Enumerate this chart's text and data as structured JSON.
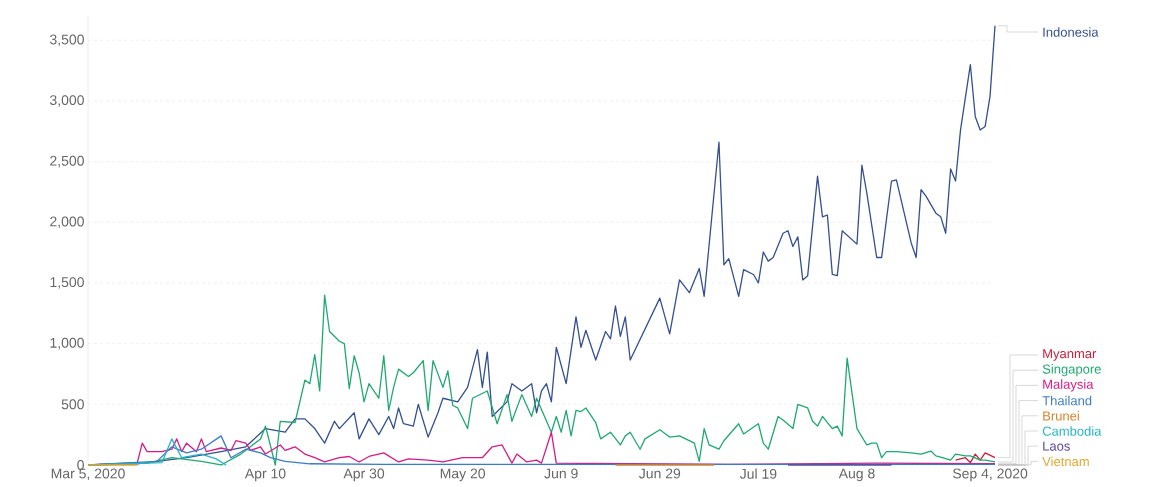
{
  "chart_data": {
    "type": "line",
    "xlim": [
      "2020-03-05",
      "2020-09-05"
    ],
    "xticks": [
      {
        "value": "2020-03-05",
        "label": "Mar 5, 2020"
      },
      {
        "value": "2020-04-10",
        "label": "Apr 10"
      },
      {
        "value": "2020-04-30",
        "label": "Apr 30"
      },
      {
        "value": "2020-05-20",
        "label": "May 20"
      },
      {
        "value": "2020-06-09",
        "label": "Jun 9"
      },
      {
        "value": "2020-06-29",
        "label": "Jun 29"
      },
      {
        "value": "2020-07-19",
        "label": "Jul 19"
      },
      {
        "value": "2020-08-08",
        "label": "Aug 8"
      },
      {
        "value": "2020-09-04",
        "label": "Sep 4, 2020"
      }
    ],
    "ylim": [
      0,
      3700
    ],
    "yticks": [
      0,
      {
        "value": 500,
        "label": "500"
      },
      {
        "value": 1000,
        "label": "1,000"
      },
      {
        "value": 1500,
        "label": "1,500"
      },
      {
        "value": 2000,
        "label": "2,000"
      },
      {
        "value": 2500,
        "label": "2,500"
      },
      {
        "value": 3000,
        "label": "3,000"
      },
      {
        "value": 3500,
        "label": "3,500"
      }
    ],
    "grid": "y",
    "series": [
      {
        "name": "Indonesia",
        "color": "#34508f",
        "x": [
          "2020-03-05",
          "2020-03-15",
          "2020-03-25",
          "2020-04-01",
          "2020-04-06",
          "2020-04-10",
          "2020-04-14",
          "2020-04-16",
          "2020-04-18",
          "2020-04-20",
          "2020-04-22",
          "2020-04-24",
          "2020-04-25",
          "2020-04-28",
          "2020-04-29",
          "2020-05-01",
          "2020-05-03",
          "2020-05-05",
          "2020-05-06",
          "2020-05-07",
          "2020-05-08",
          "2020-05-10",
          "2020-05-11",
          "2020-05-13",
          "2020-05-15",
          "2020-05-16",
          "2020-05-19",
          "2020-05-21",
          "2020-05-23",
          "2020-05-24",
          "2020-05-25",
          "2020-05-26",
          "2020-05-29",
          "2020-05-30",
          "2020-06-01",
          "2020-06-03",
          "2020-06-04",
          "2020-06-05",
          "2020-06-06",
          "2020-06-07",
          "2020-06-08",
          "2020-06-10",
          "2020-06-12",
          "2020-06-13",
          "2020-06-14",
          "2020-06-16",
          "2020-06-18",
          "2020-06-19",
          "2020-06-20",
          "2020-06-21",
          "2020-06-22",
          "2020-06-23",
          "2020-06-29",
          "2020-07-01",
          "2020-07-03",
          "2020-07-05",
          "2020-07-07",
          "2020-07-08",
          "2020-07-11",
          "2020-07-12",
          "2020-07-13",
          "2020-07-15",
          "2020-07-16",
          "2020-07-18",
          "2020-07-19",
          "2020-07-20",
          "2020-07-21",
          "2020-07-22",
          "2020-07-24",
          "2020-07-25",
          "2020-07-26",
          "2020-07-27",
          "2020-07-28",
          "2020-07-29",
          "2020-07-31",
          "2020-08-01",
          "2020-08-02",
          "2020-08-03",
          "2020-08-04",
          "2020-08-05",
          "2020-08-08",
          "2020-08-09",
          "2020-08-10",
          "2020-08-12",
          "2020-08-13",
          "2020-08-14",
          "2020-08-15",
          "2020-08-16",
          "2020-08-19",
          "2020-08-20",
          "2020-08-21",
          "2020-08-22",
          "2020-08-24",
          "2020-08-25",
          "2020-08-26",
          "2020-08-27",
          "2020-08-28",
          "2020-08-29",
          "2020-08-31",
          "2020-09-01",
          "2020-09-02",
          "2020-09-03",
          "2020-09-04",
          "2020-09-05"
        ],
        "values": [
          0,
          10,
          60,
          110,
          150,
          300,
          270,
          380,
          380,
          300,
          180,
          360,
          300,
          430,
          215,
          380,
          250,
          400,
          300,
          470,
          340,
          320,
          500,
          230,
          430,
          550,
          520,
          640,
          950,
          640,
          930,
          400,
          520,
          670,
          610,
          670,
          430,
          610,
          670,
          520,
          970,
          670,
          1220,
          970,
          1110,
          865,
          1100,
          1040,
          1310,
          1060,
          1220,
          865,
          1375,
          1080,
          1525,
          1420,
          1620,
          1390,
          2660,
          1650,
          1700,
          1390,
          1610,
          1570,
          1500,
          1755,
          1680,
          1710,
          1910,
          1930,
          1800,
          1880,
          1525,
          1560,
          2380,
          2045,
          2060,
          1570,
          1560,
          1930,
          1820,
          2470,
          2240,
          1710,
          1710,
          2030,
          2340,
          2350,
          1830,
          1710,
          2270,
          2215,
          2075,
          2045,
          1910,
          2440,
          2340,
          2760,
          3300,
          2870,
          2760,
          2790,
          3040,
          3620
        ]
      },
      {
        "name": "Myanmar",
        "color": "#c8203c",
        "x": [
          "2020-08-28",
          "2020-08-30",
          "2020-08-31",
          "2020-09-01",
          "2020-09-02",
          "2020-09-03",
          "2020-09-05"
        ],
        "values": [
          40,
          60,
          20,
          90,
          40,
          100,
          60
        ]
      },
      {
        "name": "Singapore",
        "color": "#1fa971",
        "x": [
          "2020-03-05",
          "2020-03-17",
          "2020-03-22",
          "2020-03-28",
          "2020-04-01",
          "2020-04-05",
          "2020-04-09",
          "2020-04-10",
          "2020-04-12",
          "2020-04-13",
          "2020-04-16",
          "2020-04-18",
          "2020-04-19",
          "2020-04-20",
          "2020-04-21",
          "2020-04-22",
          "2020-04-23",
          "2020-04-25",
          "2020-04-26",
          "2020-04-27",
          "2020-04-28",
          "2020-04-29",
          "2020-04-30",
          "2020-05-01",
          "2020-05-03",
          "2020-05-04",
          "2020-05-05",
          "2020-05-06",
          "2020-05-07",
          "2020-05-09",
          "2020-05-10",
          "2020-05-12",
          "2020-05-13",
          "2020-05-14",
          "2020-05-16",
          "2020-05-17",
          "2020-05-18",
          "2020-05-19",
          "2020-05-21",
          "2020-05-22",
          "2020-05-25",
          "2020-05-27",
          "2020-05-29",
          "2020-05-30",
          "2020-06-01",
          "2020-06-03",
          "2020-06-04",
          "2020-06-07",
          "2020-06-08",
          "2020-06-09",
          "2020-06-10",
          "2020-06-11",
          "2020-06-12",
          "2020-06-13",
          "2020-06-14",
          "2020-06-16",
          "2020-06-17",
          "2020-06-19",
          "2020-06-21",
          "2020-06-22",
          "2020-06-23",
          "2020-06-25",
          "2020-06-26",
          "2020-06-29",
          "2020-07-01",
          "2020-07-03",
          "2020-07-06",
          "2020-07-07",
          "2020-07-08",
          "2020-07-09",
          "2020-07-11",
          "2020-07-12",
          "2020-07-15",
          "2020-07-16",
          "2020-07-19",
          "2020-07-20",
          "2020-07-21",
          "2020-07-23",
          "2020-07-24",
          "2020-07-26",
          "2020-07-27",
          "2020-07-29",
          "2020-07-30",
          "2020-07-31",
          "2020-08-01",
          "2020-08-03",
          "2020-08-04",
          "2020-08-05",
          "2020-08-06",
          "2020-08-08",
          "2020-08-10",
          "2020-08-11",
          "2020-08-12",
          "2020-08-13",
          "2020-08-14",
          "2020-08-16",
          "2020-08-19",
          "2020-08-21",
          "2020-08-23",
          "2020-08-24",
          "2020-08-25",
          "2020-08-27",
          "2020-08-28",
          "2020-08-30",
          "2020-08-31",
          "2020-09-02",
          "2020-09-03",
          "2020-09-05"
        ],
        "values": [
          0,
          15,
          60,
          30,
          0,
          90,
          215,
          320,
          0,
          360,
          350,
          700,
          670,
          910,
          610,
          1400,
          1100,
          1020,
          1000,
          630,
          900,
          760,
          520,
          670,
          550,
          900,
          450,
          640,
          790,
          730,
          760,
          860,
          450,
          860,
          640,
          775,
          490,
          470,
          300,
          550,
          610,
          340,
          580,
          360,
          580,
          400,
          550,
          270,
          400,
          270,
          450,
          240,
          450,
          440,
          470,
          350,
          215,
          270,
          165,
          240,
          270,
          130,
          215,
          290,
          230,
          240,
          180,
          30,
          300,
          165,
          130,
          200,
          340,
          255,
          340,
          180,
          130,
          400,
          370,
          300,
          500,
          470,
          360,
          320,
          400,
          300,
          320,
          240,
          880,
          300,
          165,
          180,
          180,
          60,
          110,
          110,
          100,
          90,
          115,
          75,
          65,
          40,
          90,
          75,
          75,
          40,
          40,
          25
        ]
      },
      {
        "name": "Malaysia",
        "color": "#d41c86",
        "x": [
          "2020-03-05",
          "2020-03-15",
          "2020-03-16",
          "2020-03-17",
          "2020-03-20",
          "2020-03-22",
          "2020-03-23",
          "2020-03-24",
          "2020-03-25",
          "2020-03-27",
          "2020-03-28",
          "2020-03-29",
          "2020-04-01",
          "2020-04-03",
          "2020-04-04",
          "2020-04-06",
          "2020-04-07",
          "2020-04-09",
          "2020-04-10",
          "2020-04-13",
          "2020-04-14",
          "2020-04-16",
          "2020-04-18",
          "2020-04-20",
          "2020-04-22",
          "2020-04-25",
          "2020-04-27",
          "2020-04-29",
          "2020-05-01",
          "2020-05-04",
          "2020-05-07",
          "2020-05-09",
          "2020-05-13",
          "2020-05-16",
          "2020-05-20",
          "2020-05-24",
          "2020-05-26",
          "2020-05-28",
          "2020-05-30",
          "2020-05-31",
          "2020-06-02",
          "2020-06-04",
          "2020-06-05",
          "2020-06-07",
          "2020-06-08",
          "2020-06-23",
          "2020-07-13",
          "2020-08-12",
          "2020-09-05"
        ],
        "values": [
          0,
          20,
          180,
          110,
          110,
          130,
          215,
          110,
          180,
          110,
          215,
          110,
          140,
          120,
          200,
          180,
          120,
          150,
          90,
          165,
          120,
          150,
          90,
          60,
          25,
          60,
          70,
          25,
          70,
          100,
          25,
          50,
          40,
          25,
          60,
          60,
          150,
          165,
          15,
          90,
          25,
          40,
          15,
          270,
          15,
          10,
          5,
          15,
          10
        ]
      },
      {
        "name": "Thailand",
        "color": "#3e7bc6",
        "x": [
          "2020-03-05",
          "2020-03-19",
          "2020-03-22",
          "2020-03-25",
          "2020-03-28",
          "2020-04-01",
          "2020-04-03",
          "2020-04-06",
          "2020-04-09",
          "2020-04-11",
          "2020-04-14",
          "2020-04-19",
          "2020-05-04",
          "2020-09-05"
        ],
        "values": [
          0,
          30,
          150,
          100,
          130,
          240,
          60,
          130,
          100,
          60,
          30,
          10,
          5,
          5
        ]
      },
      {
        "name": "Brunei",
        "color": "#d9822b",
        "x": [
          "2020-06-20",
          "2020-07-10"
        ],
        "values": [
          0,
          0
        ]
      },
      {
        "name": "Cambodia",
        "color": "#22b5c6",
        "x": [
          "2020-03-05",
          "2020-03-20",
          "2020-03-22",
          "2020-03-24",
          "2020-03-28",
          "2020-03-31",
          "2020-04-02"
        ],
        "values": [
          0,
          20,
          215,
          60,
          90,
          50,
          0
        ]
      },
      {
        "name": "Laos",
        "color": "#5a4a9c",
        "x": [
          "2020-07-25",
          "2020-08-15"
        ],
        "values": [
          0,
          0
        ]
      },
      {
        "name": "Vietnam",
        "color": "#e3a52e",
        "x": [
          "2020-03-05",
          "2020-03-15"
        ],
        "values": [
          0,
          0
        ]
      }
    ]
  }
}
